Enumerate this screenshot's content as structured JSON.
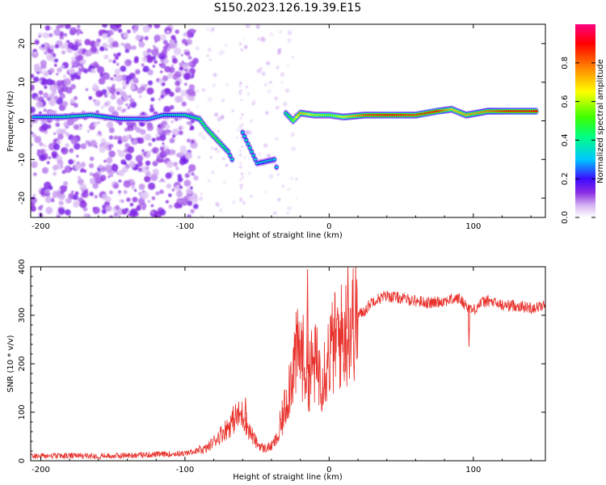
{
  "title": "S150.2023.126.19.39.E15",
  "chart_data": [
    {
      "type": "heatmap",
      "xlabel": "Height of straight line (km)",
      "ylabel": "Frequency (Hz)",
      "xlim": [
        -207,
        150
      ],
      "ylim": [
        -25,
        25
      ],
      "xticks": [
        -200,
        -100,
        0,
        100
      ],
      "yticks": [
        -20,
        -10,
        0,
        10,
        20
      ],
      "colorbar": {
        "label": "Normalized spectral amplitude",
        "range": [
          0,
          1
        ],
        "ticks": [
          0.0,
          0.2,
          0.4,
          0.6,
          0.8
        ]
      },
      "ridge": [
        {
          "x": -205,
          "y": 1.0,
          "a": 0.35
        },
        {
          "x": -185,
          "y": 1.0,
          "a": 0.4
        },
        {
          "x": -165,
          "y": 1.5,
          "a": 0.4
        },
        {
          "x": -145,
          "y": 0.5,
          "a": 0.35
        },
        {
          "x": -125,
          "y": 0.5,
          "a": 0.3
        },
        {
          "x": -115,
          "y": 1.5,
          "a": 0.35
        },
        {
          "x": -100,
          "y": 1.5,
          "a": 0.4
        },
        {
          "x": -90,
          "y": 0.5,
          "a": 0.45
        },
        {
          "x": -85,
          "y": -2.0,
          "a": 0.45
        },
        {
          "x": -80,
          "y": -4.0,
          "a": 0.5
        },
        {
          "x": -75,
          "y": -6.0,
          "a": 0.45
        },
        {
          "x": -70,
          "y": -8.0,
          "a": 0.4
        },
        {
          "x": -66,
          "y": -11.0,
          "a": 0.35
        },
        {
          "x": -60,
          "y": -3.0,
          "a": 0.35
        },
        {
          "x": -55,
          "y": -7.0,
          "a": 0.4
        },
        {
          "x": -50,
          "y": -11.0,
          "a": 0.35
        },
        {
          "x": -38,
          "y": -10.0,
          "a": 0.35
        },
        {
          "x": -35,
          "y": -14.0,
          "a": 0.3
        },
        {
          "x": -30,
          "y": 2.0,
          "a": 0.4
        },
        {
          "x": -25,
          "y": 0.0,
          "a": 0.55
        },
        {
          "x": -20,
          "y": 2.0,
          "a": 0.75
        },
        {
          "x": -10,
          "y": 1.5,
          "a": 0.6
        },
        {
          "x": 0,
          "y": 1.5,
          "a": 0.55
        },
        {
          "x": 10,
          "y": 1.0,
          "a": 0.65
        },
        {
          "x": 25,
          "y": 1.5,
          "a": 0.85
        },
        {
          "x": 40,
          "y": 1.5,
          "a": 0.9
        },
        {
          "x": 60,
          "y": 1.5,
          "a": 0.85
        },
        {
          "x": 75,
          "y": 2.5,
          "a": 0.9
        },
        {
          "x": 85,
          "y": 3.0,
          "a": 0.7
        },
        {
          "x": 95,
          "y": 1.5,
          "a": 0.75
        },
        {
          "x": 110,
          "y": 2.5,
          "a": 0.8
        },
        {
          "x": 125,
          "y": 2.5,
          "a": 0.9
        },
        {
          "x": 145,
          "y": 2.5,
          "a": 0.9
        }
      ]
    },
    {
      "type": "line",
      "xlabel": "Height of straight line (km)",
      "ylabel": "SNR (10 * v/v)",
      "xlim": [
        -207,
        150
      ],
      "ylim": [
        0,
        400
      ],
      "xticks": [
        -200,
        -100,
        0,
        100
      ],
      "yticks": [
        0,
        100,
        200,
        300,
        400
      ],
      "color": "#e8312b",
      "series": [
        {
          "x": [
            -207,
            -150,
            -100,
            -85,
            -75,
            -70,
            -65,
            -60,
            -55,
            -50,
            -45,
            -40,
            -35,
            -30,
            -25,
            -20,
            -15,
            -10,
            -5,
            0,
            5,
            10,
            15,
            20,
            25,
            30,
            40,
            50,
            60,
            70,
            80,
            90,
            95,
            100,
            105,
            110,
            120,
            130,
            140,
            150
          ],
          "y": [
            10,
            10,
            15,
            25,
            55,
            70,
            90,
            95,
            60,
            35,
            25,
            30,
            50,
            120,
            200,
            230,
            180,
            200,
            180,
            220,
            250,
            260,
            280,
            300,
            310,
            330,
            340,
            335,
            330,
            325,
            330,
            335,
            320,
            310,
            325,
            330,
            320,
            320,
            315,
            320
          ]
        }
      ],
      "annotations": [
        {
          "x": -58,
          "y": 130
        },
        {
          "x": -15,
          "y": 395
        },
        {
          "x": 13,
          "y": 400
        },
        {
          "x": 97,
          "y": 235
        }
      ]
    }
  ]
}
